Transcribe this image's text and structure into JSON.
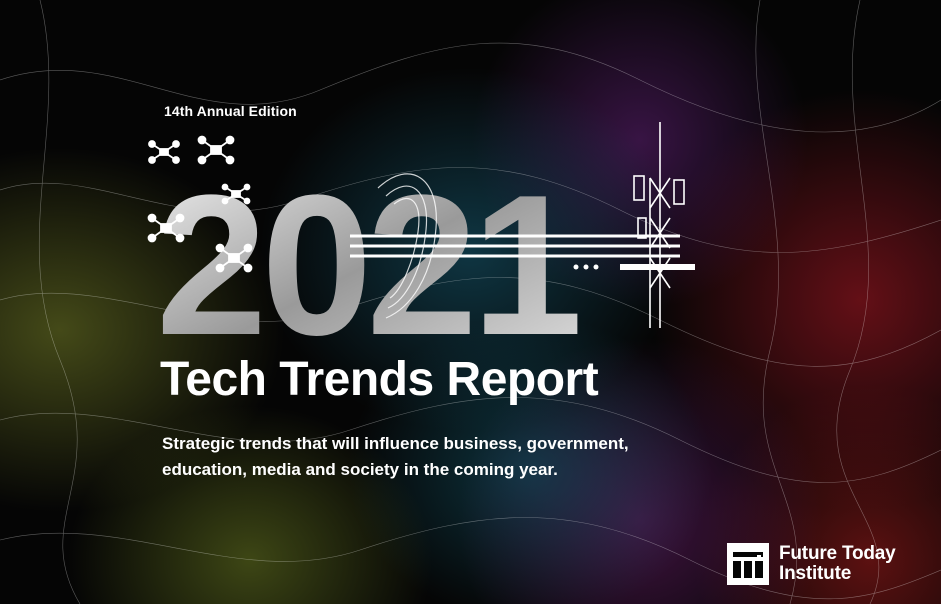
{
  "cover": {
    "edition": "14th Annual Edition",
    "year": "2021",
    "title": "Tech Trends Report",
    "subtitle": "Strategic trends that will influence business, government, education, media and society in the coming year."
  },
  "logo": {
    "line1": "Future Today",
    "line2": "Institute",
    "icon": "fti-logo-mark"
  },
  "colors": {
    "background": "#050505",
    "text": "#ffffff",
    "accent_green": "#828c28",
    "accent_teal": "#145a6e",
    "accent_purple": "#6e1e6e",
    "accent_red": "#961919"
  }
}
